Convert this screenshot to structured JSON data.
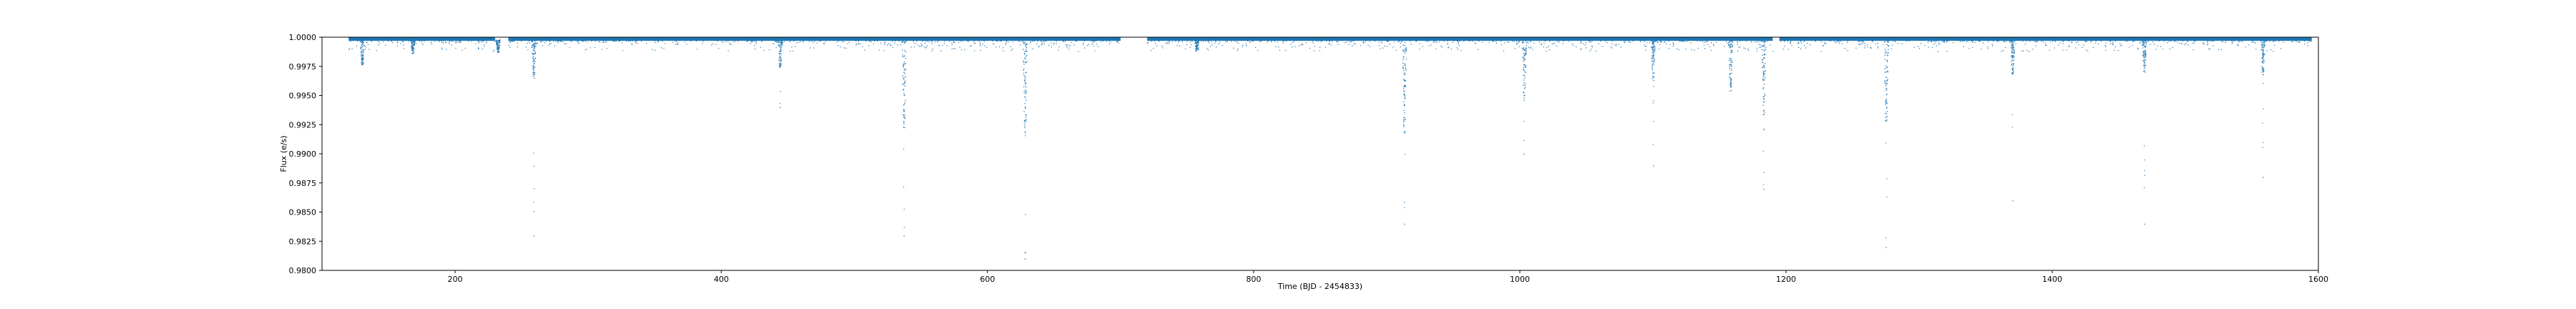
{
  "chart_data": {
    "type": "scatter",
    "title": "",
    "xlabel": "Time (BJD - 2454833)",
    "ylabel": "Flux (e/s)",
    "xlim": [
      100,
      1600
    ],
    "ylim": [
      0.98,
      1.0
    ],
    "x_ticks": [
      200,
      400,
      600,
      800,
      1000,
      1200,
      1400,
      1600
    ],
    "x_tick_labels": [
      "200",
      "400",
      "600",
      "800",
      "1000",
      "1200",
      "1400",
      "1600"
    ],
    "y_ticks": [
      0.98,
      0.9825,
      0.985,
      0.9875,
      0.99,
      0.9925,
      0.995,
      0.9975,
      1.0
    ],
    "y_tick_labels": [
      "0.9800",
      "0.9825",
      "0.9850",
      "0.9875",
      "0.9900",
      "0.9925",
      "0.9950",
      "0.9975",
      "1.0000"
    ],
    "grid": false,
    "series_color": "#1f77b4",
    "baseline_segments": [
      [
        120,
        230
      ],
      [
        240,
        700
      ],
      [
        720,
        1190
      ],
      [
        1195,
        1595
      ]
    ],
    "dips": [
      {
        "x": 130,
        "min": 0.9978
      },
      {
        "x": 168,
        "min": 0.9988
      },
      {
        "x": 232,
        "min": 0.9989
      },
      {
        "x": 259,
        "min": 0.9967
      },
      {
        "x": 444,
        "min": 0.9976
      },
      {
        "x": 537,
        "min": 0.9923
      },
      {
        "x": 628,
        "min": 0.992
      },
      {
        "x": 757,
        "min": 0.999
      },
      {
        "x": 913,
        "min": 0.992
      },
      {
        "x": 1003,
        "min": 0.9948
      },
      {
        "x": 1100,
        "min": 0.9965
      },
      {
        "x": 1158,
        "min": 0.9955
      },
      {
        "x": 1183,
        "min": 0.9935
      },
      {
        "x": 1275,
        "min": 0.993
      },
      {
        "x": 1370,
        "min": 0.997
      },
      {
        "x": 1469,
        "min": 0.997
      },
      {
        "x": 1558,
        "min": 0.997
      }
    ],
    "outliers": [
      {
        "x": 259,
        "y": 0.983
      },
      {
        "x": 444,
        "y": 0.994
      },
      {
        "x": 537,
        "y": 0.983
      },
      {
        "x": 628,
        "y": 0.981
      },
      {
        "x": 913,
        "y": 0.984
      },
      {
        "x": 1003,
        "y": 0.99
      },
      {
        "x": 1100,
        "y": 0.989
      },
      {
        "x": 1183,
        "y": 0.987
      },
      {
        "x": 1275,
        "y": 0.982
      },
      {
        "x": 1370,
        "y": 0.986
      },
      {
        "x": 1469,
        "y": 0.984
      },
      {
        "x": 1558,
        "y": 0.988
      }
    ]
  }
}
